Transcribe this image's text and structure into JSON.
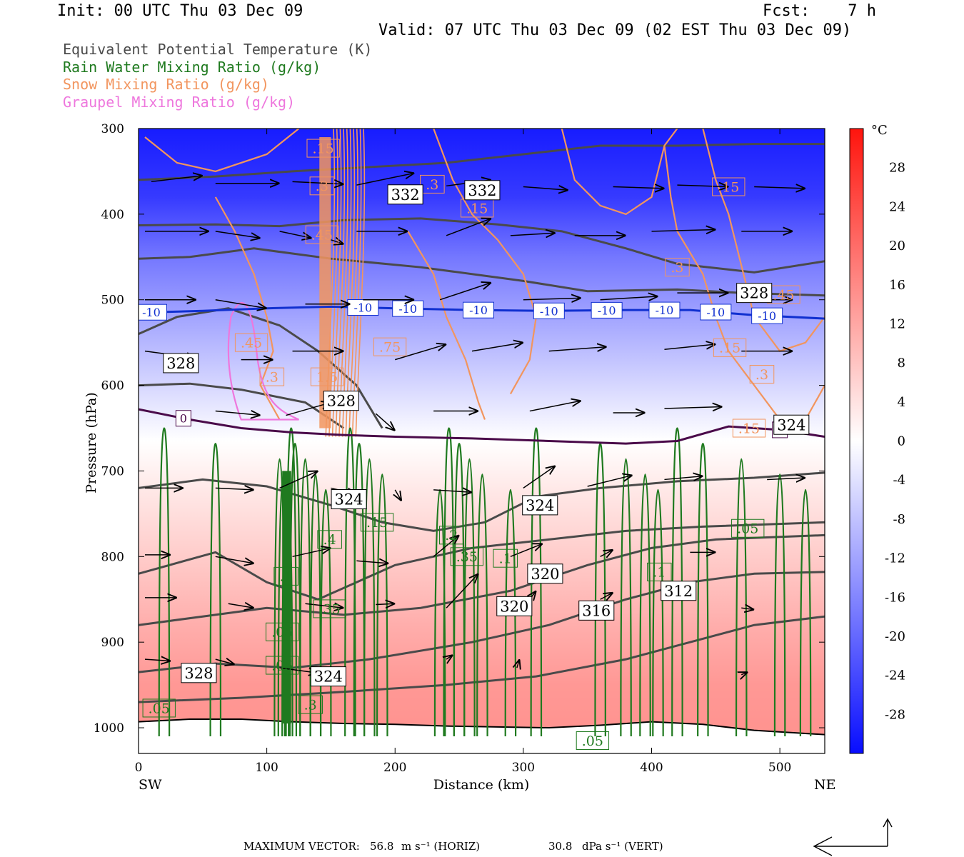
{
  "header": {
    "init": "Init: 00 UTC Thu 03 Dec 09",
    "fcst": "Fcst:    7 h",
    "valid": "Valid: 07 UTC Thu 03 Dec 09 (02 EST Thu 03 Dec 09)"
  },
  "legend": [
    {
      "label": "Equivalent Potential Temperature (K)",
      "color": "#4a4a4a"
    },
    {
      "label": "Rain Water Mixing Ratio (g/kg)",
      "color": "#1f7a1f"
    },
    {
      "label": "Snow Mixing Ratio (g/kg)",
      "color": "#f2955e"
    },
    {
      "label": "Graupel Mixing Ratio (g/kg)",
      "color": "#ee77dd"
    }
  ],
  "chart_data": {
    "type": "heatmap",
    "xlabel": "Distance (km)",
    "ylabel": "Pressure (hPa)",
    "xlim": [
      0,
      535
    ],
    "ylim": [
      1030,
      300
    ],
    "x_ticks": [
      0,
      100,
      200,
      300,
      400,
      500
    ],
    "y_ticks": [
      300,
      400,
      500,
      600,
      700,
      800,
      900,
      1000
    ],
    "x_end_labels": {
      "left": "SW",
      "right": "NE"
    },
    "colorbar": {
      "unit": "°C",
      "ticks": [
        28,
        24,
        20,
        16,
        12,
        8,
        4,
        0,
        -4,
        -8,
        -12,
        -16,
        -20,
        -24,
        -28
      ],
      "range": [
        -32,
        32
      ]
    },
    "temperature_profile": [
      {
        "p": 300,
        "t": -30
      },
      {
        "p": 380,
        "t": -26
      },
      {
        "p": 450,
        "t": -18
      },
      {
        "p": 520,
        "t": -12
      },
      {
        "p": 580,
        "t": -7
      },
      {
        "p": 640,
        "t": -2
      },
      {
        "p": 665,
        "t": 0
      },
      {
        "p": 720,
        "t": 3
      },
      {
        "p": 800,
        "t": 7
      },
      {
        "p": 880,
        "t": 11
      },
      {
        "p": 950,
        "t": 14
      },
      {
        "p": 1030,
        "t": 15
      }
    ],
    "isotherms": [
      {
        "value": -10,
        "label": "-10",
        "points": [
          [
            0,
            515
          ],
          [
            50,
            513
          ],
          [
            100,
            510
          ],
          [
            150,
            508
          ],
          [
            200,
            510
          ],
          [
            260,
            512
          ],
          [
            320,
            513
          ],
          [
            380,
            512
          ],
          [
            430,
            512
          ],
          [
            480,
            518
          ],
          [
            535,
            522
          ]
        ],
        "label_x": [
          10,
          175,
          210,
          265,
          320,
          365,
          410,
          450,
          490
        ]
      },
      {
        "value": 0,
        "label": "0",
        "points": [
          [
            0,
            628
          ],
          [
            40,
            640
          ],
          [
            80,
            650
          ],
          [
            120,
            655
          ],
          [
            160,
            658
          ],
          [
            200,
            660
          ],
          [
            260,
            662
          ],
          [
            320,
            665
          ],
          [
            380,
            668
          ],
          [
            420,
            665
          ],
          [
            460,
            648
          ],
          [
            500,
            652
          ],
          [
            535,
            660
          ]
        ],
        "label_x": [
          35,
          500
        ]
      }
    ],
    "theta_e_labels": [
      {
        "text": "332",
        "x": 208,
        "p": 377
      },
      {
        "text": "332",
        "x": 268,
        "p": 372
      },
      {
        "text": "328",
        "x": 480,
        "p": 492
      },
      {
        "text": "328",
        "x": 33,
        "p": 574
      },
      {
        "text": "328",
        "x": 158,
        "p": 618
      },
      {
        "text": "324",
        "x": 509,
        "p": 646
      },
      {
        "text": "324",
        "x": 164,
        "p": 733
      },
      {
        "text": "324",
        "x": 313,
        "p": 740
      },
      {
        "text": "320",
        "x": 317,
        "p": 820
      },
      {
        "text": "320",
        "x": 293,
        "p": 858
      },
      {
        "text": "316",
        "x": 357,
        "p": 863
      },
      {
        "text": "312",
        "x": 421,
        "p": 840
      },
      {
        "text": "328",
        "x": 47,
        "p": 936
      },
      {
        "text": "324",
        "x": 148,
        "p": 940
      }
    ],
    "rain_labels": [
      {
        "text": ".4",
        "x": 149,
        "p": 780
      },
      {
        "text": ".15",
        "x": 186,
        "p": 760
      },
      {
        "text": ".2",
        "x": 244,
        "p": 775
      },
      {
        "text": ".35",
        "x": 256,
        "p": 800
      },
      {
        "text": ".1",
        "x": 286,
        "p": 802
      },
      {
        "text": ".05",
        "x": 475,
        "p": 767
      },
      {
        "text": ".1",
        "x": 406,
        "p": 818
      },
      {
        "text": ".1",
        "x": 115,
        "p": 823
      },
      {
        "text": ".35",
        "x": 149,
        "p": 861
      },
      {
        "text": ".05",
        "x": 112,
        "p": 888
      },
      {
        "text": ".05",
        "x": 112,
        "p": 927
      },
      {
        "text": ".05",
        "x": 16,
        "p": 977
      },
      {
        "text": ".3",
        "x": 134,
        "p": 973
      },
      {
        "text": ".05",
        "x": 354,
        "p": 1015
      }
    ],
    "snow_labels": [
      {
        "text": ".15",
        "x": 144,
        "p": 323
      },
      {
        "text": ".3",
        "x": 143,
        "p": 367
      },
      {
        "text": ".3",
        "x": 229,
        "p": 365
      },
      {
        "text": ".15",
        "x": 264,
        "p": 393
      },
      {
        "text": ".45",
        "x": 143,
        "p": 424
      },
      {
        "text": ".3",
        "x": 420,
        "p": 462
      },
      {
        "text": ".15",
        "x": 460,
        "p": 368
      },
      {
        "text": ".45",
        "x": 503,
        "p": 494
      },
      {
        "text": ".75",
        "x": 196,
        "p": 555
      },
      {
        "text": ".45",
        "x": 88,
        "p": 550
      },
      {
        "text": ".3",
        "x": 104,
        "p": 590
      },
      {
        "text": "1.5",
        "x": 147,
        "p": 590
      },
      {
        "text": ".15",
        "x": 461,
        "p": 556
      },
      {
        "text": ".3",
        "x": 486,
        "p": 587
      },
      {
        "text": ".15",
        "x": 476,
        "p": 650
      }
    ],
    "wind_arrows": [
      [
        10,
        362,
        50,
        355
      ],
      [
        60,
        364,
        110,
        364
      ],
      [
        120,
        362,
        160,
        365
      ],
      [
        170,
        366,
        215,
        352
      ],
      [
        240,
        367,
        275,
        360
      ],
      [
        300,
        368,
        335,
        372
      ],
      [
        370,
        368,
        410,
        370
      ],
      [
        420,
        366,
        460,
        368
      ],
      [
        480,
        368,
        520,
        370
      ],
      [
        5,
        420,
        55,
        420
      ],
      [
        60,
        420,
        95,
        428
      ],
      [
        110,
        420,
        135,
        428
      ],
      [
        150,
        430,
        160,
        435
      ],
      [
        170,
        420,
        210,
        420
      ],
      [
        240,
        425,
        275,
        405
      ],
      [
        290,
        425,
        325,
        422
      ],
      [
        340,
        425,
        380,
        425
      ],
      [
        400,
        420,
        450,
        418
      ],
      [
        470,
        420,
        510,
        420
      ],
      [
        5,
        500,
        45,
        500
      ],
      [
        60,
        500,
        100,
        510
      ],
      [
        130,
        505,
        165,
        505
      ],
      [
        175,
        500,
        215,
        500
      ],
      [
        235,
        500,
        275,
        480
      ],
      [
        300,
        500,
        345,
        498
      ],
      [
        360,
        500,
        405,
        496
      ],
      [
        420,
        492,
        460,
        492
      ],
      [
        470,
        500,
        510,
        500
      ],
      [
        5,
        560,
        45,
        568
      ],
      [
        80,
        570,
        105,
        570
      ],
      [
        120,
        560,
        160,
        560
      ],
      [
        200,
        570,
        240,
        552
      ],
      [
        260,
        560,
        300,
        550
      ],
      [
        320,
        560,
        365,
        555
      ],
      [
        410,
        558,
        450,
        552
      ],
      [
        470,
        560,
        510,
        560
      ],
      [
        60,
        630,
        95,
        635
      ],
      [
        115,
        635,
        150,
        620
      ],
      [
        150,
        620,
        155,
        625
      ],
      [
        185,
        633,
        200,
        653
      ],
      [
        230,
        630,
        265,
        630
      ],
      [
        305,
        630,
        345,
        618
      ],
      [
        370,
        632,
        395,
        632
      ],
      [
        410,
        627,
        455,
        625
      ],
      [
        5,
        720,
        35,
        720
      ],
      [
        60,
        720,
        90,
        722
      ],
      [
        110,
        720,
        140,
        700
      ],
      [
        150,
        720,
        170,
        727
      ],
      [
        200,
        722,
        205,
        735
      ],
      [
        230,
        722,
        260,
        725
      ],
      [
        300,
        720,
        325,
        694
      ],
      [
        350,
        718,
        385,
        705
      ],
      [
        410,
        710,
        440,
        706
      ],
      [
        490,
        710,
        520,
        708
      ],
      [
        5,
        798,
        25,
        798
      ],
      [
        60,
        800,
        90,
        808
      ],
      [
        120,
        800,
        150,
        790
      ],
      [
        170,
        805,
        195,
        808
      ],
      [
        230,
        800,
        250,
        775
      ],
      [
        290,
        800,
        315,
        785
      ],
      [
        360,
        800,
        370,
        792
      ],
      [
        430,
        795,
        450,
        795
      ],
      [
        5,
        848,
        30,
        848
      ],
      [
        70,
        855,
        90,
        860
      ],
      [
        130,
        855,
        160,
        860
      ],
      [
        185,
        856,
        200,
        855
      ],
      [
        240,
        860,
        265,
        820
      ],
      [
        300,
        860,
        310,
        840
      ],
      [
        360,
        850,
        370,
        842
      ],
      [
        470,
        860,
        480,
        862
      ],
      [
        5,
        920,
        25,
        922
      ],
      [
        60,
        920,
        75,
        926
      ],
      [
        110,
        930,
        140,
        936
      ],
      [
        240,
        920,
        245,
        915
      ],
      [
        295,
        930,
        297,
        920
      ],
      [
        470,
        938,
        475,
        935
      ]
    ],
    "max_vector": {
      "label": "MAXIMUM VECTOR:",
      "horiz_value": "56.8",
      "horiz_units": "m s⁻¹ (HORIZ)",
      "vert_value": "30.8",
      "vert_units": "dPa s⁻¹ (VERT)"
    }
  },
  "colors": {
    "theta_e": "#4a4a4a",
    "rain": "#1f7a1f",
    "snow": "#f2955e",
    "graupel": "#ee77dd",
    "isotherm_minus10": "#1030d0",
    "isotherm_0": "#4a0a4a"
  }
}
